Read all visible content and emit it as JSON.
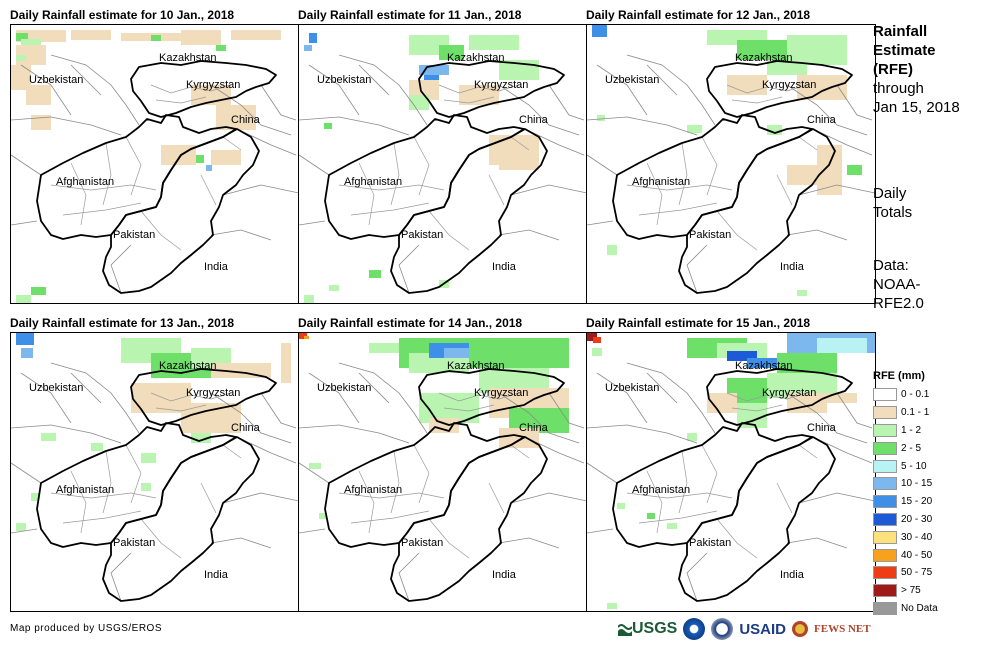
{
  "panels": [
    {
      "title": "Daily Rainfall estimate for 10 Jan., 2018",
      "rain": "p1"
    },
    {
      "title": "Daily Rainfall estimate for 11 Jan., 2018",
      "rain": "p2"
    },
    {
      "title": "Daily Rainfall estimate for 12 Jan., 2018",
      "rain": "p3"
    },
    {
      "title": "Daily Rainfall estimate for 13 Jan., 2018",
      "rain": "p4"
    },
    {
      "title": "Daily Rainfall estimate for 14 Jan., 2018",
      "rain": "p5"
    },
    {
      "title": "Daily Rainfall estimate for 15 Jan., 2018",
      "rain": "p6"
    }
  ],
  "map_labels": {
    "kazakhstan": "Kazakhstan",
    "uzbekistan": "Uzbekistan",
    "kyrgyzstan": "Kyrgyzstan",
    "china": "China",
    "afghanistan": "Afghanistan",
    "pakistan": "Pakistan",
    "india": "India"
  },
  "side": {
    "title_line1": "Rainfall",
    "title_line2": "Estimate",
    "title_line3": "(RFE)",
    "through": "through",
    "date": "Jan 15, 2018",
    "daily": "Daily",
    "totals": "Totals",
    "data_label": "Data:",
    "data_source1": "NOAA-",
    "data_source2": "RFE2.0"
  },
  "legend": {
    "title": "RFE (mm)",
    "items": [
      {
        "label": "0 - 0.1",
        "color": "#ffffff"
      },
      {
        "label": "0.1 - 1",
        "color": "#f1dcbc"
      },
      {
        "label": "1 - 2",
        "color": "#b9f5b0"
      },
      {
        "label": "2 - 5",
        "color": "#6ee06a"
      },
      {
        "label": "5 - 10",
        "color": "#b9f2f2"
      },
      {
        "label": "10 - 15",
        "color": "#7cb8ee"
      },
      {
        "label": "15 - 20",
        "color": "#3d8fe8"
      },
      {
        "label": "20 - 30",
        "color": "#1c5ad8"
      },
      {
        "label": "30 - 40",
        "color": "#fde17a"
      },
      {
        "label": "40 - 50",
        "color": "#f8a11c"
      },
      {
        "label": "50 - 75",
        "color": "#ee3c14"
      },
      {
        "label": "> 75",
        "color": "#a01a1a"
      },
      {
        "label": "No Data",
        "color": "#999999"
      }
    ]
  },
  "footer": {
    "credit": "Map produced by USGS/EROS",
    "logo_usgs": "USGS",
    "logo_usaid": "USAID",
    "logo_fews": "FEWS NET"
  }
}
